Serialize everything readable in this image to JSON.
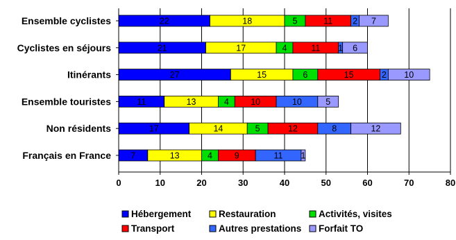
{
  "chart_data": {
    "type": "bar",
    "orientation": "horizontal",
    "stacked": true,
    "title": "",
    "xlabel": "",
    "ylabel": "",
    "xlim": [
      0,
      80
    ],
    "xticks": [
      0,
      10,
      20,
      30,
      40,
      50,
      60,
      70,
      80
    ],
    "grid": "vertical",
    "legend_position": "bottom",
    "categories": [
      "Ensemble cyclistes",
      "Cyclistes en séjours",
      "Itinérants",
      "Ensemble touristes",
      "Non résidents",
      "Français en France"
    ],
    "series": [
      {
        "name": "Hébergement",
        "color": "#0000FF",
        "values": [
          22,
          21,
          27,
          11,
          17,
          7
        ]
      },
      {
        "name": "Restauration",
        "color": "#FFFF00",
        "values": [
          18,
          17,
          15,
          13,
          14,
          13
        ]
      },
      {
        "name": "Activités, visites",
        "color": "#00E000",
        "values": [
          5,
          4,
          6,
          4,
          5,
          4
        ]
      },
      {
        "name": "Transport",
        "color": "#FF0000",
        "values": [
          11,
          11,
          15,
          10,
          12,
          9
        ]
      },
      {
        "name": "Autres prestations",
        "color": "#3366FF",
        "values": [
          2,
          1,
          2,
          10,
          8,
          11
        ]
      },
      {
        "name": "Forfait TO",
        "color": "#9999FF",
        "values": [
          7,
          6,
          10,
          5,
          12,
          1
        ]
      }
    ]
  }
}
